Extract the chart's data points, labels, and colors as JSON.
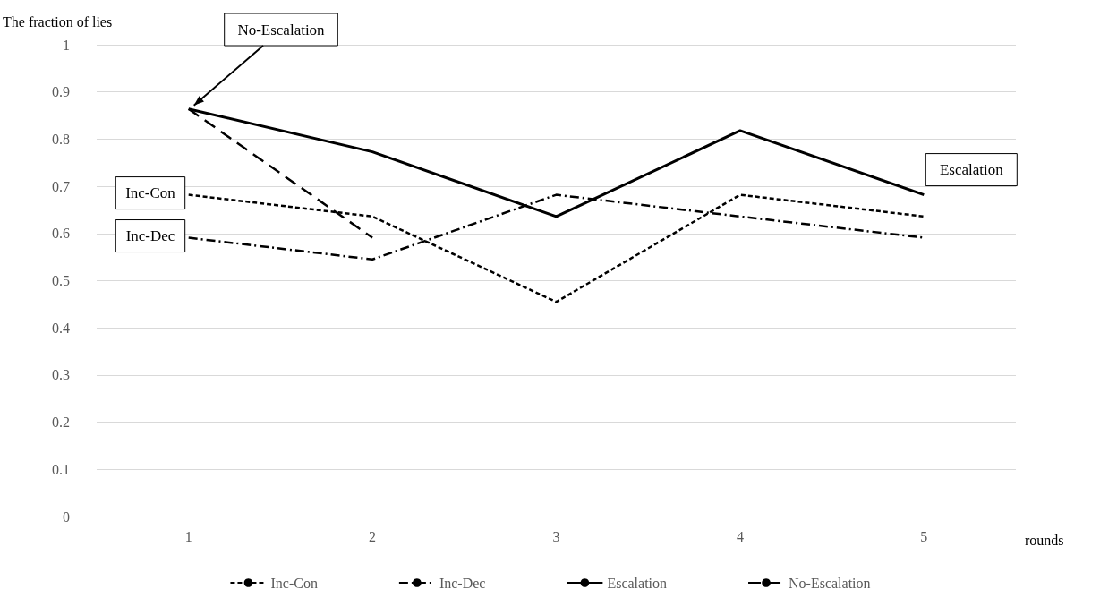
{
  "chart_data": {
    "type": "line",
    "xlabel": "rounds",
    "ylabel": "The fraction of lies",
    "categories": [
      "1",
      "2",
      "3",
      "4",
      "5"
    ],
    "series": [
      {
        "name": "Inc-Con",
        "color": "#000000",
        "line_style": "dotted",
        "values": [
          0.682,
          0.636,
          0.455,
          0.682,
          0.636
        ]
      },
      {
        "name": "Inc-Dec",
        "color": "#000000",
        "line_style": "dashdot",
        "values": [
          0.591,
          0.545,
          0.682,
          0.636,
          0.591
        ]
      },
      {
        "name": "Escalation",
        "color": "#000000",
        "line_style": "solid",
        "values": [
          0.864,
          0.773,
          0.636,
          0.818,
          0.682
        ]
      },
      {
        "name": "No-Escalation",
        "color": "#000000",
        "line_style": "dashed",
        "values": [
          0.864,
          0.591,
          null,
          null,
          null
        ]
      }
    ],
    "ylim": [
      0,
      1
    ],
    "yticks": [
      0,
      0.1,
      0.2,
      0.3,
      0.4,
      0.5,
      0.6,
      0.7,
      0.8,
      0.9,
      1
    ],
    "grid": "y",
    "legend": "bottom",
    "marker": "none",
    "annotations": [
      {
        "text": "Inc-Con",
        "x": "1",
        "y": 0.682
      },
      {
        "text": "Inc-Dec",
        "x": "1",
        "y": 0.591
      },
      {
        "text": "Escalation",
        "x": "5",
        "y": 0.682
      },
      {
        "text": "No-Escalation",
        "x": "1",
        "y": 0.864
      }
    ]
  }
}
